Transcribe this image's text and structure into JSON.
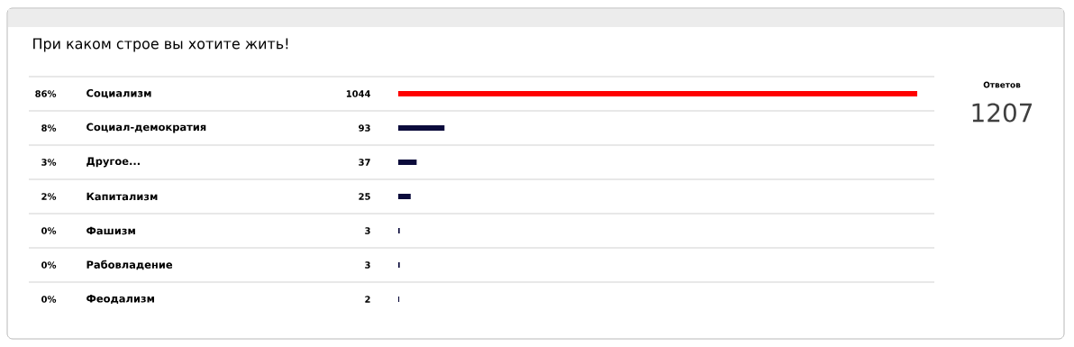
{
  "chart_data": {
    "type": "bar",
    "orientation": "horizontal",
    "title": "При каком строе вы хотите жить!",
    "categories": [
      "Социализм",
      "Социал-демократия",
      "Другое...",
      "Капитализм",
      "Фашизм",
      "Рабовладение",
      "Феодализм"
    ],
    "values": [
      1044,
      93,
      37,
      25,
      3,
      3,
      2
    ],
    "colors": [
      "#ff0000",
      "#0b0b3b",
      "#0b0b3b",
      "#0b0b3b",
      "#0b0b3b",
      "#0b0b3b",
      "#0b0b3b"
    ],
    "data_labels": true,
    "annotations": [
      "86%",
      "8%",
      "3%",
      "2%",
      "0%",
      "0%",
      "0%",
      "Ответов",
      "1207"
    ]
  }
}
